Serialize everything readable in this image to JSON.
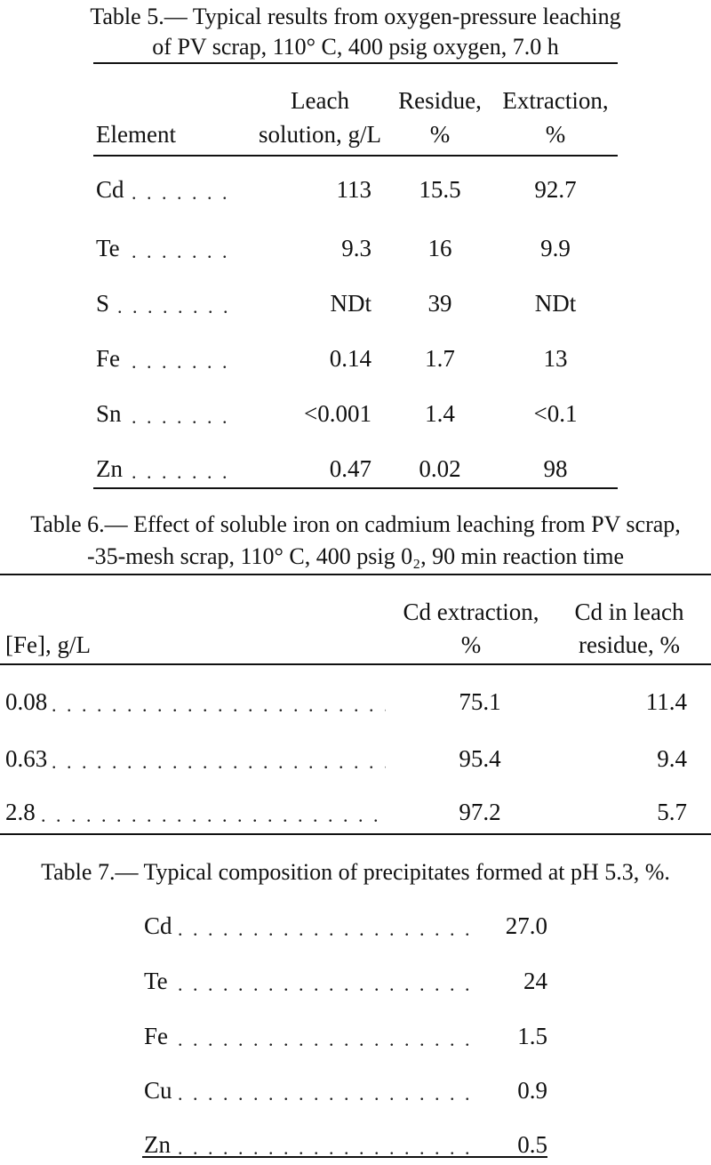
{
  "table5": {
    "caption_line1": "Table 5.— Typical results from oxygen-pressure leaching",
    "caption_line2": "of PV scrap, 110° C, 400 psig oxygen, 7.0 h",
    "headers": {
      "element": "Element",
      "leach_l1": "Leach",
      "leach_l2": "solution, g/L",
      "residue_l1": "Residue,",
      "residue_l2": "%",
      "extraction_l1": "Extraction,",
      "extraction_l2": "%"
    },
    "rows": [
      {
        "element": "Cd",
        "leach": "113",
        "residue": "15.5",
        "extraction": "92.7"
      },
      {
        "element": "Te",
        "leach": "9.3",
        "residue": "16",
        "extraction": "9.9"
      },
      {
        "element": "S",
        "leach": "NDt",
        "residue": "39",
        "extraction": "NDt"
      },
      {
        "element": "Fe",
        "leach": "0.14",
        "residue": "1.7",
        "extraction": "13"
      },
      {
        "element": "Sn",
        "leach": "<0.001",
        "residue": "1.4",
        "extraction": "<0.1"
      },
      {
        "element": "Zn",
        "leach": "0.47",
        "residue": "0.02",
        "extraction": "98"
      }
    ]
  },
  "table6": {
    "caption_line1": "Table 6.— Effect of soluble iron on cadmium leaching from PV scrap,",
    "caption_line2": "-35-mesh scrap, 110° C, 400 psig 0₂, 90 min reaction time",
    "headers": {
      "fe": "[Fe], g/L",
      "cd_ext_l1": "Cd extraction,",
      "cd_ext_l2": "%",
      "cd_res_l1": "Cd in leach",
      "cd_res_l2": "residue, %"
    },
    "rows": [
      {
        "fe": "0.08",
        "cd_extraction": "75.1",
        "cd_residue": "11.4"
      },
      {
        "fe": "0.63",
        "cd_extraction": "95.4",
        "cd_residue": "9.4"
      },
      {
        "fe": "2.8",
        "cd_extraction": "97.2",
        "cd_residue": "5.7"
      }
    ]
  },
  "table7": {
    "caption": "Table 7.— Typical composition of precipitates formed at pH 5.3, %.",
    "rows": [
      {
        "element": "Cd",
        "value": "27.0"
      },
      {
        "element": "Te",
        "value": "24"
      },
      {
        "element": "Fe",
        "value": "1.5"
      },
      {
        "element": "Cu",
        "value": "0.9"
      },
      {
        "element": "Zn",
        "value": "0.5"
      }
    ]
  }
}
